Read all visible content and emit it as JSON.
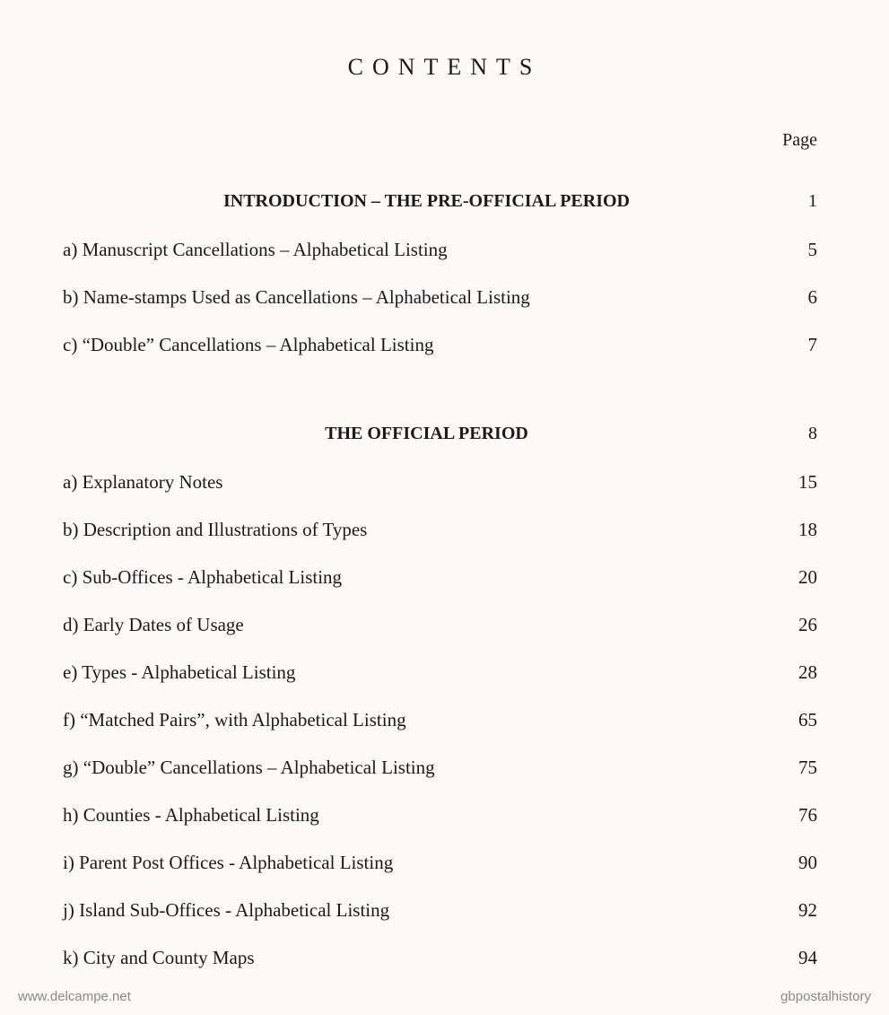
{
  "title": "CONTENTS",
  "page_header": "Page",
  "sections": [
    {
      "header": "INTRODUCTION – THE PRE-OFFICIAL PERIOD",
      "header_page": "1",
      "entries": [
        {
          "label": "a) Manuscript Cancellations – Alphabetical Listing",
          "page": "5"
        },
        {
          "label": "b) Name-stamps Used as Cancellations – Alphabetical Listing",
          "page": "6"
        },
        {
          "label": "c) “Double” Cancellations – Alphabetical Listing",
          "page": "7"
        }
      ]
    },
    {
      "header": "THE OFFICIAL PERIOD",
      "header_page": "8",
      "entries": [
        {
          "label": "a) Explanatory Notes",
          "page": "15"
        },
        {
          "label": "b) Description and Illustrations of Types",
          "page": "18"
        },
        {
          "label": "c) Sub-Offices - Alphabetical Listing",
          "page": "20"
        },
        {
          "label": "d) Early Dates of Usage",
          "page": "26"
        },
        {
          "label": "e) Types - Alphabetical Listing",
          "page": "28"
        },
        {
          "label": "f) “Matched Pairs”, with Alphabetical Listing",
          "page": "65"
        },
        {
          "label": "g) “Double” Cancellations – Alphabetical Listing",
          "page": "75"
        },
        {
          "label": "h) Counties - Alphabetical Listing",
          "page": "76"
        },
        {
          "label": "i) Parent Post Offices - Alphabetical Listing",
          "page": "90"
        },
        {
          "label": "j) Island Sub-Offices - Alphabetical Listing",
          "page": "92"
        },
        {
          "label": "k) City and County Maps",
          "page": "94"
        }
      ]
    }
  ],
  "watermark_left": "www.delcampe.net",
  "watermark_right": "gbpostalhistory",
  "style": {
    "background_color": "#fcfbf8",
    "text_color": "#1a1a1a",
    "title_fontsize": 26,
    "title_letterspacing": 10,
    "body_fontsize": 21,
    "header_fontsize": 20,
    "font_family": "Georgia, Times New Roman, serif"
  }
}
